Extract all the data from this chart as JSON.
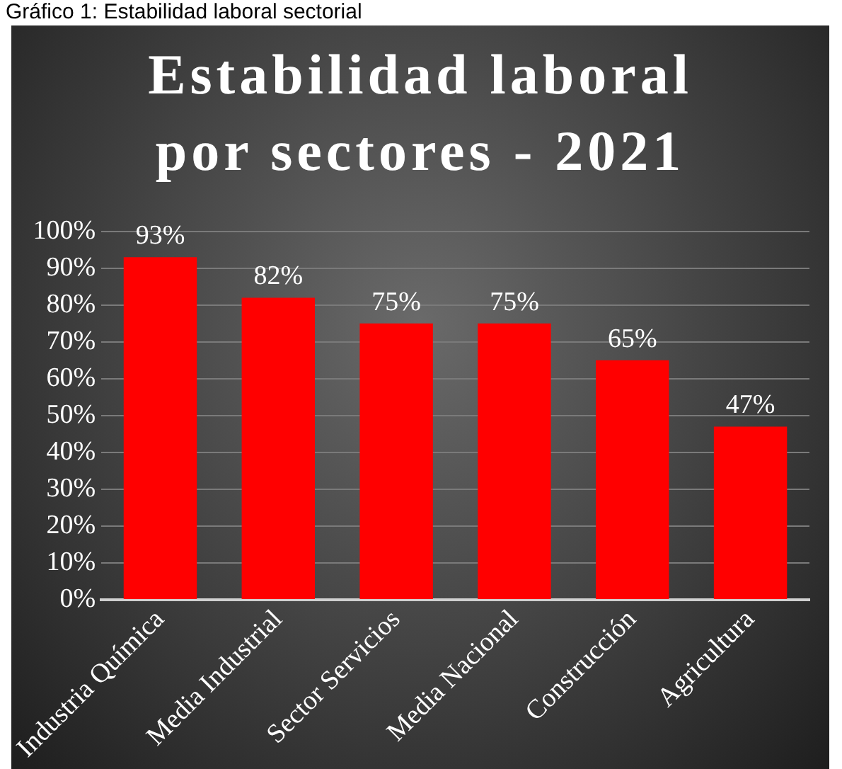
{
  "chart_data": {
    "type": "bar",
    "title": "Estabilidad laboral por sectores - 2021",
    "annotations": [
      "Gráfico 1: Estabilidad laboral sectorial"
    ],
    "categories": [
      "Industria Química",
      "Media Industrial",
      "Sector Servicios",
      "Media Nacional",
      "Construcción",
      "Agricultura"
    ],
    "values": [
      93,
      82,
      75,
      75,
      65,
      47
    ],
    "value_labels": [
      "93%",
      "82%",
      "75%",
      "75%",
      "65%",
      "47%"
    ],
    "color": "#ff0000",
    "ylim": [
      0,
      100
    ],
    "yticks": [
      {
        "value": 0,
        "label": "0%"
      },
      {
        "value": 10,
        "label": "10%"
      },
      {
        "value": 20,
        "label": "20%"
      },
      {
        "value": 30,
        "label": "30%"
      },
      {
        "value": 40,
        "label": "40%"
      },
      {
        "value": 50,
        "label": "50%"
      },
      {
        "value": 60,
        "label": "60%"
      },
      {
        "value": 70,
        "label": "70%"
      },
      {
        "value": 80,
        "label": "80%"
      },
      {
        "value": 90,
        "label": "90%"
      },
      {
        "value": 100,
        "label": "100%"
      }
    ],
    "grid": "y",
    "legend": false
  }
}
